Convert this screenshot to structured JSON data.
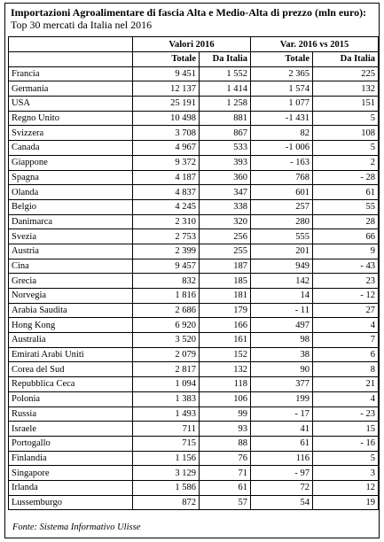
{
  "header": {
    "title": "Importazioni Agroalimentare di fascia Alta e Medio-Alta di prezzo (mln euro):",
    "subtitle": "Top 30 mercati da Italia nel 2016"
  },
  "table": {
    "groups": [
      "Valori 2016",
      "Var. 2016 vs 2015"
    ],
    "columns": [
      "Totale",
      "Da Italia",
      "Totale",
      "Da Italia"
    ],
    "rows": [
      [
        "Francia",
        "9 451",
        "1 552",
        "2 365",
        "225"
      ],
      [
        "Germania",
        "12 137",
        "1 414",
        "1 574",
        "132"
      ],
      [
        "USA",
        "25 191",
        "1 258",
        "1 077",
        "151"
      ],
      [
        "Regno Unito",
        "10 498",
        "881",
        "-1 431",
        "5"
      ],
      [
        "Svizzera",
        "3 708",
        "867",
        "82",
        "108"
      ],
      [
        "Canada",
        "4 967",
        "533",
        "-1 006",
        "5"
      ],
      [
        "Giappone",
        "9 372",
        "393",
        "- 163",
        "2"
      ],
      [
        "Spagna",
        "4 187",
        "360",
        "768",
        "- 28"
      ],
      [
        "Olanda",
        "4 837",
        "347",
        "601",
        "61"
      ],
      [
        "Belgio",
        "4 245",
        "338",
        "257",
        "55"
      ],
      [
        "Danimarca",
        "2 310",
        "320",
        "280",
        "28"
      ],
      [
        "Svezia",
        "2 753",
        "256",
        "555",
        "66"
      ],
      [
        "Austria",
        "2 399",
        "255",
        "201",
        "9"
      ],
      [
        "Cina",
        "9 457",
        "187",
        "949",
        "- 43"
      ],
      [
        "Grecia",
        "832",
        "185",
        "142",
        "23"
      ],
      [
        "Norvegia",
        "1 816",
        "181",
        "14",
        "- 12"
      ],
      [
        "Arabia Saudita",
        "2 686",
        "179",
        "- 11",
        "27"
      ],
      [
        "Hong Kong",
        "6 920",
        "166",
        "497",
        "4"
      ],
      [
        "Australia",
        "3 520",
        "161",
        "98",
        "7"
      ],
      [
        "Emirati Arabi Uniti",
        "2 079",
        "152",
        "38",
        "6"
      ],
      [
        "Corea del Sud",
        "2 817",
        "132",
        "90",
        "8"
      ],
      [
        "Repubblica Ceca",
        "1 094",
        "118",
        "377",
        "21"
      ],
      [
        "Polonia",
        "1 383",
        "106",
        "199",
        "4"
      ],
      [
        "Russia",
        "1 493",
        "99",
        "- 17",
        "- 23"
      ],
      [
        "Israele",
        "711",
        "93",
        "41",
        "15"
      ],
      [
        "Portogallo",
        "715",
        "88",
        "61",
        "- 16"
      ],
      [
        "Finlandia",
        "1 156",
        "76",
        "116",
        "5"
      ],
      [
        "Singapore",
        "3 129",
        "71",
        "- 97",
        "3"
      ],
      [
        "Irlanda",
        "1 586",
        "61",
        "72",
        "12"
      ],
      [
        "Lussemburgo",
        "872",
        "57",
        "54",
        "19"
      ]
    ]
  },
  "footer": {
    "source": "Fonte: Sistema Informativo Ulisse"
  }
}
